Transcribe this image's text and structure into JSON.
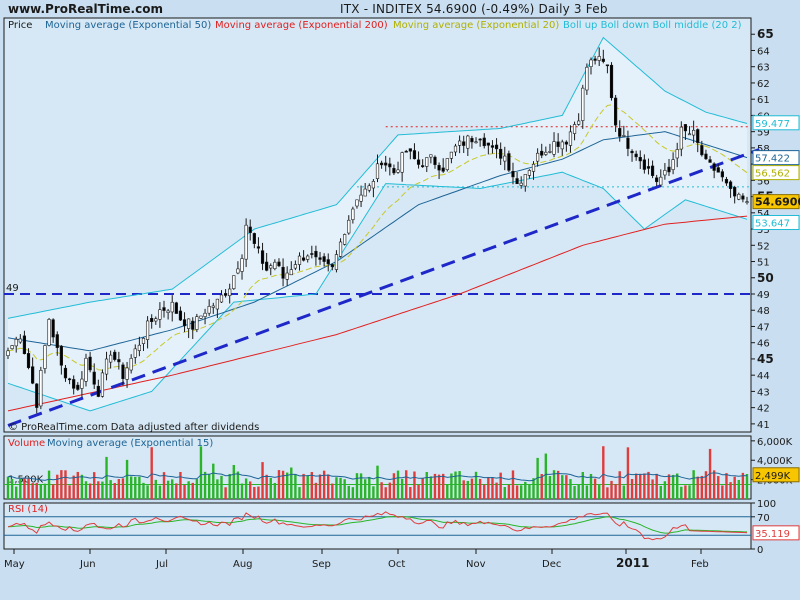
{
  "header": {
    "site": "www.ProRealTime.com",
    "title": "ITX - INDITEX    54.6900 (-0.49%)    Daily  3 Feb"
  },
  "legend": {
    "price": "Price",
    "ema50": "Moving average (Exponential 50)",
    "ema200": "Moving average (Exponential 200)",
    "ema20": "Moving average (Exponential 20)",
    "boll": "Boll up Boll down Boll middle (20 2)"
  },
  "colors": {
    "background": "#c9def0",
    "panel": "#d6e8f5",
    "ema50": "#1e6496",
    "ema200": "#e02020",
    "ema20": "#c8c828",
    "boll": "#22bcd6",
    "trendline": "#1e28c8",
    "candle_up": "#ffffff",
    "candle_down": "#000000",
    "volume_up": "#2ab42a",
    "volume_down": "#e03c3c",
    "rsi_line": "#e03c3c",
    "rsi_ma": "#2ab42a"
  },
  "chart_data": [
    {
      "type": "candlestick",
      "symbol": "ITX - INDITEX",
      "last_price": 54.69,
      "change_pct": -0.49,
      "period": "Daily",
      "date": "3 Feb",
      "x_ticks": [
        "May",
        "Jun",
        "Jul",
        "Aug",
        "Sep",
        "Oct",
        "Nov",
        "Dec",
        "2011",
        "Feb"
      ],
      "y_ticks": [
        41,
        42,
        43,
        44,
        45,
        46,
        47,
        48,
        49,
        50,
        51,
        52,
        53,
        54,
        55,
        56,
        57,
        58,
        59,
        60,
        61,
        62,
        63,
        64,
        65
      ],
      "y_tick_labels": [
        "41",
        "42",
        "43",
        "44",
        "45",
        "46",
        "47",
        "48",
        "49",
        "50",
        "51",
        "52",
        "53",
        "54",
        "55",
        "56",
        "57",
        "58",
        "59",
        "60",
        "61",
        "62",
        "63",
        "64",
        "65"
      ],
      "ylim": [
        40.5,
        66
      ],
      "horizontal_levels": [
        {
          "label": "49",
          "value": 49,
          "style": "dashed-blue"
        },
        {
          "label": "",
          "value": 59.3,
          "style": "dotted-red"
        },
        {
          "label": "",
          "value": 55.6,
          "style": "dotted-blue"
        }
      ],
      "trendline": {
        "x0": 0,
        "y0": 40.9,
        "x1": 183,
        "y1": 57.9
      },
      "last_value_labels": {
        "price": "54.6900",
        "boll_up": "59.477",
        "ema50": "57.422",
        "ema20": "56.562",
        "boll_down": "53.647"
      },
      "close_anchors": [
        [
          0,
          45.5
        ],
        [
          3,
          46.5
        ],
        [
          6,
          43.5
        ],
        [
          7,
          42.3
        ],
        [
          10,
          47.5
        ],
        [
          13,
          44.5
        ],
        [
          17,
          43.0
        ],
        [
          19,
          45.0
        ],
        [
          22,
          43.0
        ],
        [
          25,
          45.5
        ],
        [
          28,
          44.0
        ],
        [
          31,
          45.5
        ],
        [
          34,
          47.0
        ],
        [
          37,
          48.0
        ],
        [
          40,
          48.3
        ],
        [
          42,
          47.5
        ],
        [
          45,
          47.0
        ],
        [
          48,
          48.0
        ],
        [
          51,
          48.5
        ],
        [
          54,
          49.5
        ],
        [
          57,
          51.5
        ],
        [
          58,
          53.3
        ],
        [
          60,
          52.0
        ],
        [
          63,
          50.5
        ],
        [
          65,
          51.0
        ],
        [
          67,
          50.0
        ],
        [
          70,
          51.0
        ],
        [
          73,
          51.5
        ],
        [
          76,
          50.8
        ],
        [
          79,
          50.5
        ],
        [
          82,
          53.0
        ],
        [
          85,
          55.0
        ],
        [
          88,
          55.5
        ],
        [
          91,
          57.3
        ],
        [
          94,
          56.5
        ],
        [
          97,
          57.8
        ],
        [
          100,
          57.0
        ],
        [
          103,
          57.3
        ],
        [
          106,
          56.8
        ],
        [
          109,
          58.0
        ],
        [
          112,
          58.5
        ],
        [
          115,
          58.8
        ],
        [
          118,
          57.8
        ],
        [
          121,
          57.5
        ],
        [
          124,
          55.8
        ],
        [
          127,
          56.8
        ],
        [
          130,
          57.8
        ],
        [
          133,
          58.3
        ],
        [
          136,
          58.5
        ],
        [
          139,
          60.0
        ],
        [
          141,
          63.0
        ],
        [
          143,
          63.5
        ],
        [
          146,
          63.0
        ],
        [
          148,
          59.5
        ],
        [
          150,
          58.5
        ],
        [
          152,
          58.0
        ],
        [
          155,
          57.0
        ],
        [
          158,
          56.0
        ],
        [
          161,
          56.5
        ],
        [
          164,
          59.0
        ],
        [
          167,
          58.8
        ],
        [
          170,
          57.0
        ],
        [
          173,
          56.5
        ],
        [
          176,
          55.2
        ],
        [
          178,
          54.8
        ],
        [
          180,
          54.69
        ]
      ],
      "ema200_anchors": [
        [
          0,
          41.8
        ],
        [
          40,
          44.0
        ],
        [
          80,
          46.5
        ],
        [
          110,
          49.0
        ],
        [
          140,
          52.0
        ],
        [
          160,
          53.3
        ],
        [
          180,
          53.8
        ]
      ],
      "ema50_anchors": [
        [
          0,
          46.3
        ],
        [
          20,
          45.5
        ],
        [
          40,
          46.8
        ],
        [
          60,
          48.5
        ],
        [
          80,
          51.0
        ],
        [
          100,
          54.5
        ],
        [
          120,
          56.3
        ],
        [
          135,
          57.3
        ],
        [
          145,
          58.5
        ],
        [
          160,
          59.0
        ],
        [
          175,
          57.8
        ],
        [
          180,
          57.4
        ]
      ],
      "boll_up_anchors": [
        [
          0,
          47.5
        ],
        [
          20,
          48.5
        ],
        [
          40,
          49.3
        ],
        [
          60,
          53.0
        ],
        [
          80,
          54.5
        ],
        [
          95,
          58.8
        ],
        [
          120,
          59.2
        ],
        [
          135,
          60.0
        ],
        [
          145,
          64.8
        ],
        [
          160,
          61.5
        ],
        [
          170,
          60.2
        ],
        [
          180,
          59.5
        ]
      ],
      "boll_down_anchors": [
        [
          0,
          43.5
        ],
        [
          20,
          41.8
        ],
        [
          35,
          43.0
        ],
        [
          55,
          48.5
        ],
        [
          75,
          49.0
        ],
        [
          92,
          55.8
        ],
        [
          115,
          55.5
        ],
        [
          135,
          56.5
        ],
        [
          145,
          55.5
        ],
        [
          155,
          53.0
        ],
        [
          165,
          54.8
        ],
        [
          180,
          53.6
        ]
      ],
      "copyright": "© ProRealTime.com Data adjusted after dividends"
    },
    {
      "type": "bar",
      "name": "Volume",
      "legend": "Moving average (Exponential 15)",
      "y_tick_labels": [
        "6,000K",
        "4,000K",
        "2,000K"
      ],
      "y_ticks": [
        6000,
        4000,
        2000
      ],
      "ylim": [
        0,
        6500
      ],
      "last_value_label": "2,499K",
      "level_label": "1,500K",
      "level_value": 1500,
      "ma_value": 2499
    },
    {
      "type": "line",
      "name": "RSI (14)",
      "y_tick_labels": [
        "100",
        "70",
        "0"
      ],
      "y_ticks": [
        100,
        70,
        0
      ],
      "ylim": [
        0,
        100
      ],
      "last_value_label": "35.119",
      "last_value": 35.119,
      "levels": [
        70,
        30
      ]
    }
  ]
}
